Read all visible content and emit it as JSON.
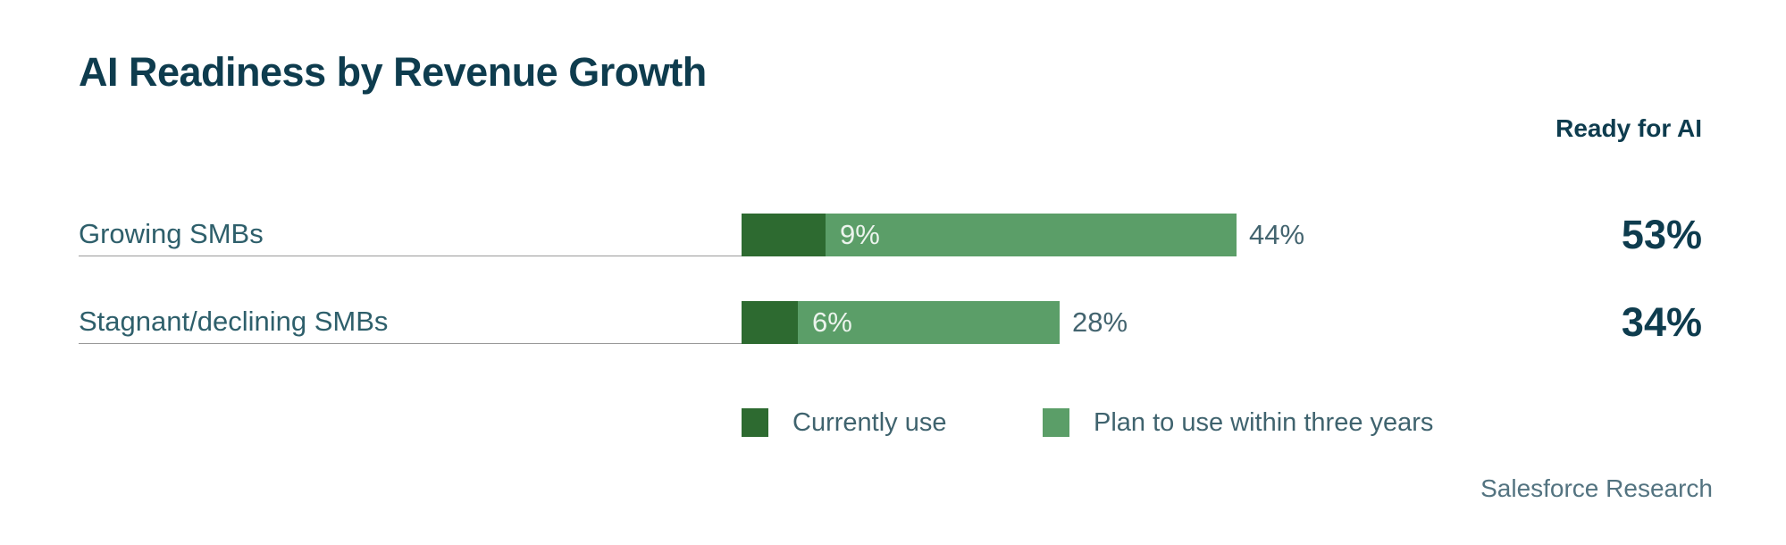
{
  "title": "AI Readiness by Revenue Growth",
  "right_header": "Ready for AI",
  "source": "Salesforce Research",
  "colors": {
    "currently_use_green": "#2d6a30",
    "plan_to_use_green": "#5b9e68",
    "heading_text": "#0e3c4e",
    "row_label_text": "#2e5f6b",
    "outside_value_text": "#43646f",
    "inside_value_text": "#ecf4ed",
    "rule_line": "#999999",
    "source_text": "#537380"
  },
  "chart_data": {
    "type": "bar",
    "orientation": "horizontal",
    "stacked": true,
    "title": "AI Readiness by Revenue Growth",
    "categories": [
      "Growing SMBs",
      "Stagnant/declining SMBs"
    ],
    "series": [
      {
        "name": "Currently use",
        "values": [
          9,
          6
        ],
        "color": "#2d6a30"
      },
      {
        "name": "Plan to use within three years",
        "values": [
          44,
          28
        ],
        "color": "#5b9e68"
      }
    ],
    "totals_column": {
      "header": "Ready for AI",
      "values": [
        53,
        34
      ]
    },
    "value_suffix": "%",
    "legend_position": "bottom",
    "grid": false,
    "source": "Salesforce Research"
  },
  "rows": [
    {
      "label": "Growing SMBs",
      "currently_use_label": "9%",
      "plan_to_use_label": "44%",
      "ready_total_label": "53%"
    },
    {
      "label": "Stagnant/declining SMBs",
      "currently_use_label": "6%",
      "plan_to_use_label": "28%",
      "ready_total_label": "34%"
    }
  ]
}
